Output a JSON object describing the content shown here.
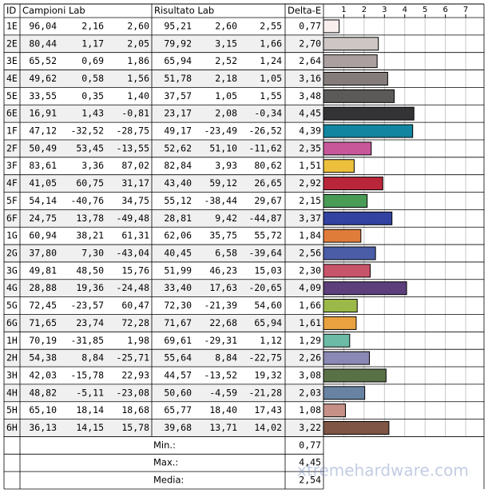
{
  "table": {
    "headers": [
      "ID",
      "Campioni Lab",
      "Risultato Lab",
      "Delta-E"
    ],
    "rows": [
      {
        "id": "1E",
        "campioni": [
          "96,04",
          "2,16",
          "2,60"
        ],
        "risultato": [
          "95,21",
          "2,60",
          "2,55"
        ]
      },
      {
        "id": "2E",
        "campioni": [
          "80,44",
          "1,17",
          "2,05"
        ],
        "risultato": [
          "79,92",
          "3,15",
          "1,66"
        ]
      },
      {
        "id": "3E",
        "campioni": [
          "65,52",
          "0,69",
          "1,86"
        ],
        "risultato": [
          "65,94",
          "2,52",
          "1,24"
        ]
      },
      {
        "id": "4E",
        "campioni": [
          "49,62",
          "0,58",
          "1,56"
        ],
        "risultato": [
          "51,78",
          "2,18",
          "1,05"
        ]
      },
      {
        "id": "5E",
        "campioni": [
          "33,55",
          "0,35",
          "1,40"
        ],
        "risultato": [
          "37,57",
          "1,05",
          "1,55"
        ]
      },
      {
        "id": "6E",
        "campioni": [
          "16,91",
          "1,43",
          "-0,81"
        ],
        "risultato": [
          "23,17",
          "2,08",
          "-0,34"
        ]
      },
      {
        "id": "1F",
        "campioni": [
          "47,12",
          "-32,52",
          "-28,75"
        ],
        "risultato": [
          "49,17",
          "-23,49",
          "-26,52"
        ]
      },
      {
        "id": "2F",
        "campioni": [
          "50,49",
          "53,45",
          "-13,55"
        ],
        "risultato": [
          "52,62",
          "51,10",
          "-11,62"
        ]
      },
      {
        "id": "3F",
        "campioni": [
          "83,61",
          "3,36",
          "87,02"
        ],
        "risultato": [
          "82,84",
          "3,93",
          "80,62"
        ]
      },
      {
        "id": "4F",
        "campioni": [
          "41,05",
          "60,75",
          "31,17"
        ],
        "risultato": [
          "43,40",
          "59,12",
          "26,65"
        ]
      },
      {
        "id": "5F",
        "campioni": [
          "54,14",
          "-40,76",
          "34,75"
        ],
        "risultato": [
          "55,12",
          "-38,44",
          "29,67"
        ]
      },
      {
        "id": "6F",
        "campioni": [
          "24,75",
          "13,78",
          "-49,48"
        ],
        "risultato": [
          "28,81",
          "9,42",
          "-44,87"
        ]
      },
      {
        "id": "1G",
        "campioni": [
          "60,94",
          "38,21",
          "61,31"
        ],
        "risultato": [
          "62,06",
          "35,75",
          "55,72"
        ]
      },
      {
        "id": "2G",
        "campioni": [
          "37,80",
          "7,30",
          "-43,04"
        ],
        "risultato": [
          "40,45",
          "6,58",
          "-39,64"
        ]
      },
      {
        "id": "3G",
        "campioni": [
          "49,81",
          "48,50",
          "15,76"
        ],
        "risultato": [
          "51,99",
          "46,23",
          "15,03"
        ]
      },
      {
        "id": "4G",
        "campioni": [
          "28,88",
          "19,36",
          "-24,48"
        ],
        "risultato": [
          "33,40",
          "17,63",
          "-20,65"
        ]
      },
      {
        "id": "5G",
        "campioni": [
          "72,45",
          "-23,57",
          "60,47"
        ],
        "risultato": [
          "72,30",
          "-21,39",
          "54,60"
        ]
      },
      {
        "id": "6G",
        "campioni": [
          "71,65",
          "23,74",
          "72,28"
        ],
        "risultato": [
          "71,67",
          "22,68",
          "65,94"
        ]
      },
      {
        "id": "1H",
        "campioni": [
          "70,19",
          "-31,85",
          "1,98"
        ],
        "risultato": [
          "69,61",
          "-29,31",
          "1,12"
        ]
      },
      {
        "id": "2H",
        "campioni": [
          "54,38",
          "8,84",
          "-25,71"
        ],
        "risultato": [
          "55,64",
          "8,84",
          "-22,75"
        ]
      },
      {
        "id": "3H",
        "campioni": [
          "42,03",
          "-15,78",
          "22,93"
        ],
        "risultato": [
          "44,57",
          "-13,52",
          "19,32"
        ]
      },
      {
        "id": "4H",
        "campioni": [
          "48,82",
          "-5,11",
          "-23,08"
        ],
        "risultato": [
          "50,60",
          "-4,59",
          "-21,28"
        ]
      },
      {
        "id": "5H",
        "campioni": [
          "65,10",
          "18,14",
          "18,68"
        ],
        "risultato": [
          "65,77",
          "18,40",
          "17,43"
        ]
      },
      {
        "id": "6H",
        "campioni": [
          "36,13",
          "14,15",
          "15,78"
        ],
        "risultato": [
          "39,68",
          "13,71",
          "14,02"
        ]
      }
    ],
    "summary": [
      {
        "label": "Min.:",
        "value": "0,77"
      },
      {
        "label": "Max.:",
        "value": "4,45"
      },
      {
        "label": "Media:",
        "value": "2,54"
      }
    ]
  },
  "chart_data": {
    "type": "bar",
    "values": [
      0.77,
      2.7,
      2.64,
      3.16,
      3.48,
      4.45,
      4.39,
      2.35,
      1.51,
      2.92,
      2.15,
      3.37,
      1.84,
      2.56,
      2.3,
      4.09,
      1.66,
      1.61,
      1.29,
      2.26,
      3.08,
      2.03,
      1.08,
      3.22
    ],
    "value_labels": [
      "0,77",
      "2,70",
      "2,64",
      "3,16",
      "3,48",
      "4,45",
      "4,39",
      "2,35",
      "1,51",
      "2,92",
      "2,15",
      "3,37",
      "1,84",
      "2,56",
      "2,30",
      "4,09",
      "1,66",
      "1,61",
      "1,29",
      "2,26",
      "3,08",
      "2,03",
      "1,08",
      "3,22"
    ],
    "colors": [
      "#f8eeee",
      "#cdc6c4",
      "#ab9f9f",
      "#847c7b",
      "#5b5a58",
      "#333335",
      "#1285a1",
      "#c8579a",
      "#ecc03b",
      "#b9263a",
      "#489c55",
      "#3242a0",
      "#e07c3a",
      "#4a5da6",
      "#c8546a",
      "#5d3f7c",
      "#9bb948",
      "#e9a23f",
      "#6cbba6",
      "#8a88b4",
      "#5a7148",
      "#6883a2",
      "#c79087",
      "#7f5545"
    ],
    "xlim": [
      0,
      7.9
    ],
    "xticks": [
      1,
      2,
      3,
      4,
      5,
      6,
      7
    ],
    "grid": true
  },
  "watermark": "xtremehardware.com"
}
